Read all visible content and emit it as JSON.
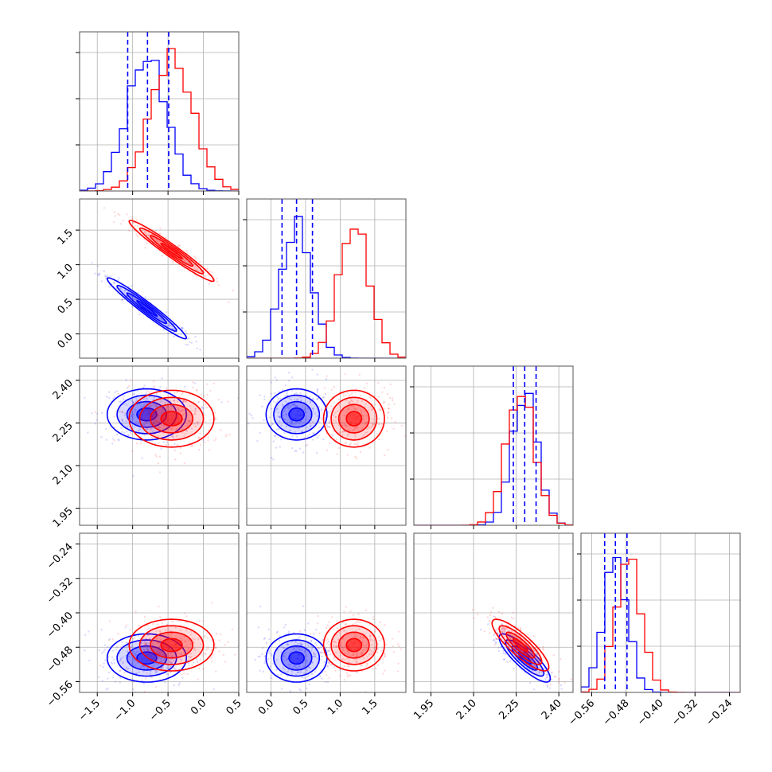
{
  "chart_data": {
    "type": "corner",
    "parameters": [
      {
        "ticks": [
          -1.5,
          -1.0,
          -0.5,
          0.0,
          0.5
        ],
        "tick_labels": [
          "−1.5",
          "−1.0",
          "−0.5",
          "0.0",
          "0.5"
        ],
        "range": [
          -1.75,
          0.5
        ]
      },
      {
        "ticks": [
          0.0,
          0.5,
          1.0,
          1.5
        ],
        "tick_labels": [
          "0.0",
          "0.5",
          "1.0",
          "1.5"
        ],
        "range": [
          -0.35,
          1.95
        ]
      },
      {
        "ticks": [
          1.95,
          2.1,
          2.25,
          2.4
        ],
        "tick_labels": [
          "1.95",
          "2.10",
          "2.25",
          "2.40"
        ],
        "range": [
          1.89,
          2.45
        ]
      },
      {
        "ticks": [
          -0.56,
          -0.48,
          -0.4,
          -0.32,
          -0.24
        ],
        "tick_labels": [
          "−0.56",
          "−0.48",
          "−0.40",
          "−0.32",
          "−0.24"
        ],
        "range": [
          -0.585,
          -0.215
        ]
      }
    ],
    "series": [
      {
        "color": "#0000ff",
        "means": [
          -0.8,
          0.37,
          2.28,
          -0.505
        ],
        "sigmas": [
          0.28,
          0.22,
          0.045,
          0.028
        ],
        "correlations": {
          "1-0": -0.97,
          "2-0": 0.0,
          "2-1": 0.0,
          "3-0": 0.0,
          "3-1": 0.0,
          "3-2": -0.85
        },
        "quantiles": [
          [
            -1.07,
            -0.79,
            -0.49
          ],
          [
            0.16,
            0.37,
            0.6
          ],
          [
            2.24,
            2.28,
            2.32
          ],
          [
            -0.53,
            -0.505,
            -0.478
          ]
        ]
      },
      {
        "color": "#ff0000",
        "means": [
          -0.45,
          1.2,
          2.265,
          -0.475
        ],
        "sigmas": [
          0.3,
          0.22,
          0.05,
          0.03
        ],
        "correlations": {
          "1-0": -0.97,
          "2-0": 0.0,
          "2-1": 0.0,
          "3-0": 0.0,
          "3-1": 0.0,
          "3-2": -0.85
        }
      }
    ],
    "quantile_line_style": "dashed",
    "grid": true,
    "legend": "none"
  }
}
